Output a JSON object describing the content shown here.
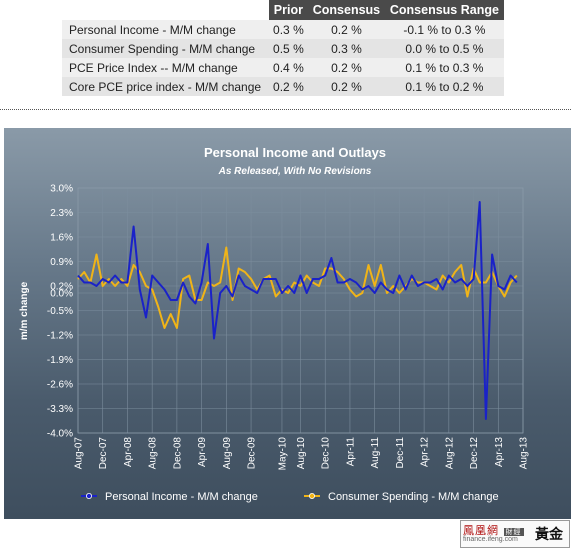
{
  "table": {
    "columns": [
      "",
      "Prior",
      "Consensus",
      "Consensus Range"
    ],
    "rows": [
      {
        "label": "Personal Income - M/M change",
        "prior": "0.3 %",
        "consensus": "0.2 %",
        "range": "-0.1 % to 0.3 %"
      },
      {
        "label": "Consumer Spending - M/M change",
        "prior": "0.5 %",
        "consensus": "0.3 %",
        "range": "0.0 % to 0.5 %"
      },
      {
        "label": "PCE Price Index -- M/M change",
        "prior": "0.4 %",
        "consensus": "0.2 %",
        "range": "0.1 % to 0.3 %"
      },
      {
        "label": "Core PCE price index - M/M change",
        "prior": "0.2 %",
        "consensus": "0.2 %",
        "range": "0.1 % to 0.2 %"
      }
    ]
  },
  "chart_data": {
    "type": "line",
    "title": "Personal Income and Outlays",
    "subtitle": "As Released, With No Revisions",
    "ylabel": "m/m change",
    "xlabel": "",
    "ylim": [
      -4.0,
      3.0
    ],
    "y_ticks": [
      "3.0%",
      "2.3%",
      "1.6%",
      "0.9%",
      "0.2%",
      "0.0%",
      "-0.5%",
      "-1.2%",
      "-1.9%",
      "-2.6%",
      "-3.3%",
      "-4.0%"
    ],
    "y_tick_values": [
      3.0,
      2.3,
      1.6,
      0.9,
      0.2,
      0.0,
      -0.5,
      -1.2,
      -1.9,
      -2.6,
      -3.3,
      -4.0
    ],
    "x_ticks": [
      "Aug-07",
      "Dec-07",
      "Apr-08",
      "Aug-08",
      "Dec-08",
      "Apr-09",
      "Aug-09",
      "Dec-09",
      "May-10",
      "Aug-10",
      "Dec-10",
      "Apr-11",
      "Aug-11",
      "Dec-11",
      "Apr-12",
      "Aug-12",
      "Dec-12",
      "Apr-13",
      "Aug-13"
    ],
    "x_tick_positions": [
      0,
      4,
      8,
      12,
      16,
      20,
      24,
      28,
      33,
      36,
      40,
      44,
      48,
      52,
      56,
      60,
      64,
      68,
      72
    ],
    "grid": true,
    "legend_position": "bottom",
    "series": [
      {
        "name": "Personal Income - M/M change",
        "color": "#1a22c8",
        "values": [
          0.5,
          0.3,
          0.3,
          0.2,
          0.4,
          0.3,
          0.5,
          0.3,
          0.3,
          1.9,
          0.1,
          -0.7,
          0.5,
          0.3,
          0.1,
          -0.2,
          -0.2,
          0.3,
          -0.1,
          -0.3,
          0.3,
          1.4,
          -1.3,
          0.0,
          0.2,
          -0.1,
          0.5,
          0.2,
          0.1,
          0.0,
          0.4,
          0.4,
          0.4,
          0.0,
          0.2,
          0.0,
          0.5,
          0.0,
          0.4,
          0.4,
          0.5,
          1.0,
          0.3,
          0.3,
          0.4,
          0.3,
          0.1,
          0.2,
          0.0,
          0.3,
          0.1,
          0.0,
          0.5,
          0.1,
          0.5,
          0.2,
          0.3,
          0.3,
          0.4,
          0.1,
          0.5,
          0.3,
          0.4,
          0.2,
          0.4,
          2.6,
          -3.6,
          1.1,
          0.2,
          0.1,
          0.5,
          0.3
        ]
      },
      {
        "name": "Consumer Spending - M/M change",
        "color": "#f0b418",
        "values": [
          0.4,
          0.6,
          0.3,
          1.1,
          0.2,
          0.4,
          0.2,
          0.4,
          0.2,
          0.8,
          0.6,
          0.2,
          0.1,
          -0.4,
          -1.0,
          -0.6,
          -1.0,
          0.4,
          0.5,
          -0.2,
          -0.2,
          0.3,
          0.2,
          0.3,
          1.3,
          -0.2,
          0.7,
          0.6,
          0.4,
          0.1,
          0.4,
          0.5,
          -0.1,
          0.1,
          0.0,
          0.3,
          0.2,
          0.5,
          0.3,
          0.2,
          0.7,
          0.7,
          0.6,
          0.4,
          0.1,
          -0.1,
          0.0,
          0.8,
          0.2,
          0.8,
          0.0,
          0.2,
          0.0,
          0.2,
          0.4,
          0.3,
          0.3,
          0.2,
          0.1,
          0.5,
          0.3,
          0.6,
          0.8,
          -0.1,
          0.7,
          0.3,
          0.3,
          0.6,
          0.2,
          -0.1,
          0.3,
          0.5
        ]
      }
    ]
  },
  "watermark": {
    "brand": "鳳凰網",
    "badge": "財經",
    "url": "finance.ifeng.com",
    "gold": "黃金"
  }
}
